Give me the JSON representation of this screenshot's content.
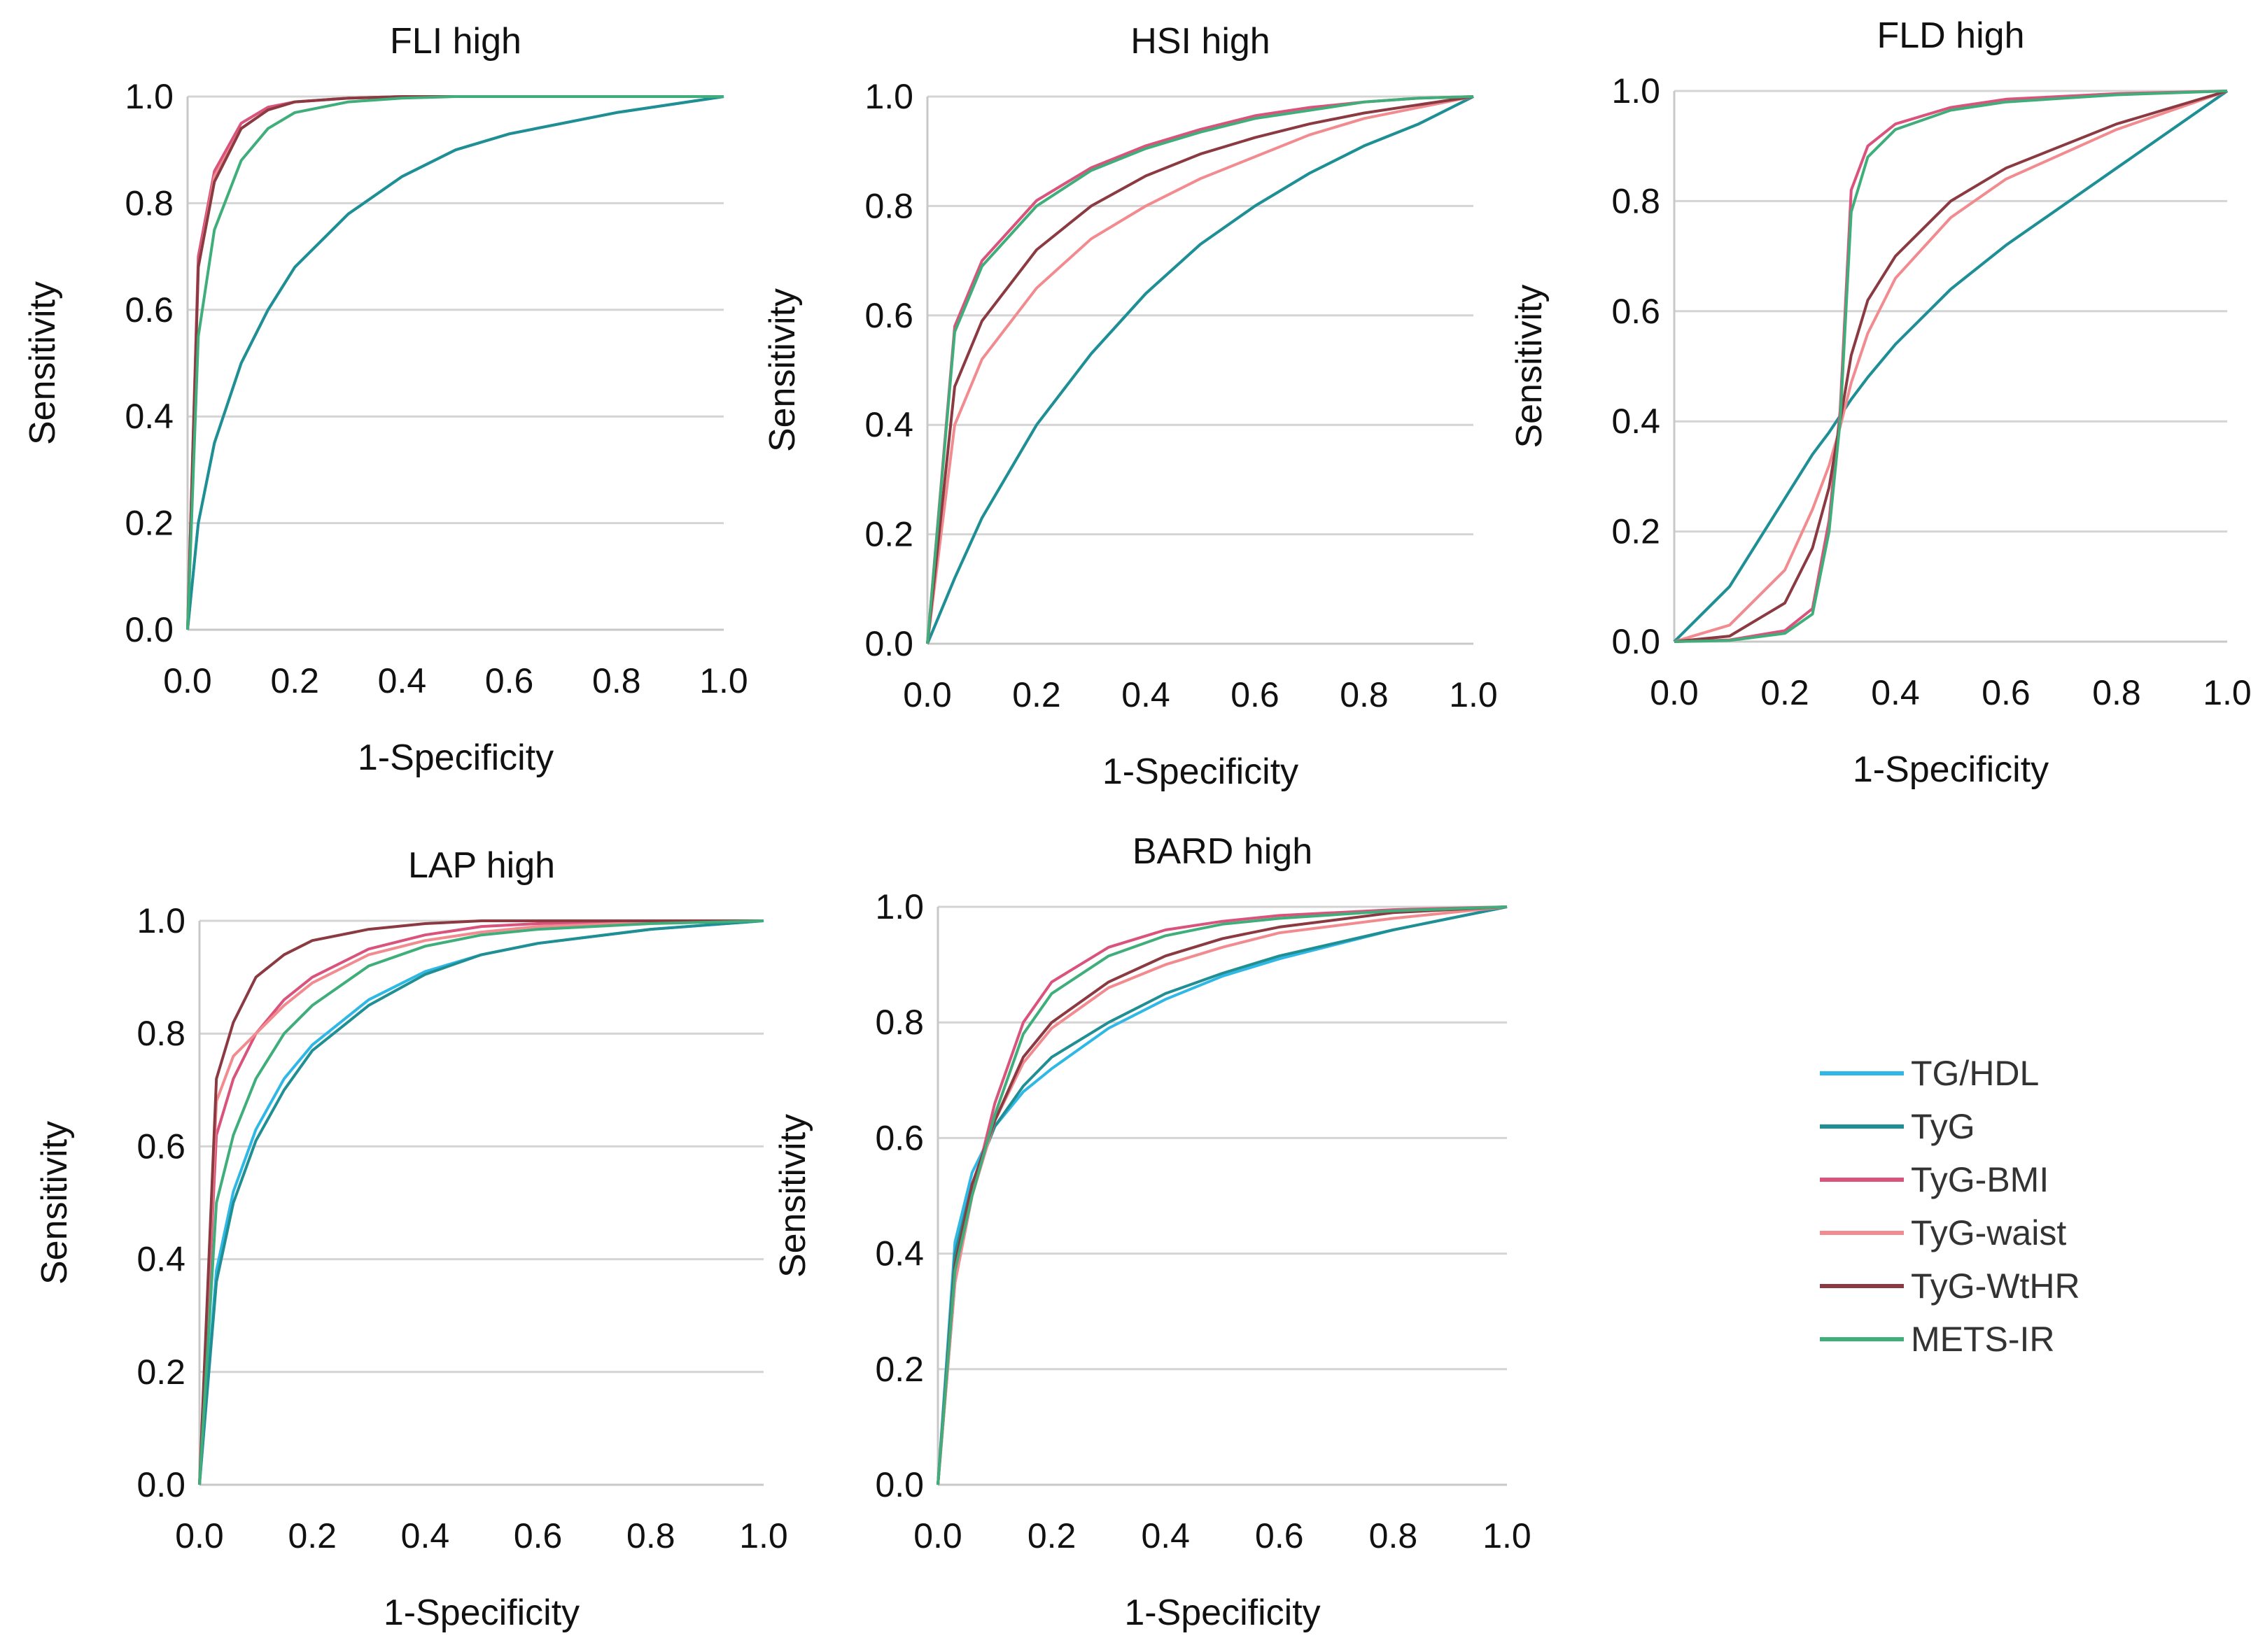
{
  "figure": {
    "xlabel": "1-Specificity",
    "ylabel": "Sensitivity",
    "ticks": [
      "0.0",
      "0.2",
      "0.4",
      "0.6",
      "0.8",
      "1.0"
    ]
  },
  "legend": {
    "items": [
      {
        "name": "TG/HDL",
        "color": "#2fb8e6"
      },
      {
        "name": "TyG",
        "color": "#1f8f94"
      },
      {
        "name": "TyG-BMI",
        "color": "#d9537c"
      },
      {
        "name": "TyG-waist",
        "color": "#f28b8f"
      },
      {
        "name": "TyG-WtHR",
        "color": "#8c3a42"
      },
      {
        "name": "METS-IR",
        "color": "#3fae7a"
      }
    ]
  },
  "chart_data": [
    {
      "type": "line",
      "title": "FLI high",
      "xlabel": "1-Specificity",
      "ylabel": "Sensitivity",
      "xlim": [
        0,
        1
      ],
      "ylim": [
        0,
        1
      ],
      "x": [
        0,
        0.02,
        0.05,
        0.1,
        0.15,
        0.2,
        0.3,
        0.4,
        0.5,
        0.6,
        0.8,
        1.0
      ],
      "series": [
        {
          "name": "TG/HDL",
          "values": [
            0,
            0.2,
            0.35,
            0.5,
            0.6,
            0.68,
            0.78,
            0.85,
            0.9,
            0.93,
            0.97,
            1.0
          ]
        },
        {
          "name": "TyG",
          "values": [
            0,
            0.2,
            0.35,
            0.5,
            0.6,
            0.68,
            0.78,
            0.85,
            0.9,
            0.93,
            0.97,
            1.0
          ]
        },
        {
          "name": "TyG-BMI",
          "values": [
            0,
            0.7,
            0.86,
            0.95,
            0.98,
            0.99,
            0.997,
            1.0,
            1.0,
            1.0,
            1.0,
            1.0
          ]
        },
        {
          "name": "TyG-waist",
          "values": [
            0,
            0.68,
            0.85,
            0.94,
            0.975,
            0.99,
            0.997,
            1.0,
            1.0,
            1.0,
            1.0,
            1.0
          ]
        },
        {
          "name": "TyG-WtHR",
          "values": [
            0,
            0.68,
            0.84,
            0.94,
            0.975,
            0.99,
            0.997,
            1.0,
            1.0,
            1.0,
            1.0,
            1.0
          ]
        },
        {
          "name": "METS-IR",
          "values": [
            0,
            0.55,
            0.75,
            0.88,
            0.94,
            0.97,
            0.99,
            0.997,
            1.0,
            1.0,
            1.0,
            1.0
          ]
        }
      ]
    },
    {
      "type": "line",
      "title": "HSI high",
      "xlabel": "1-Specificity",
      "ylabel": "Sensitivity",
      "xlim": [
        0,
        1
      ],
      "ylim": [
        0,
        1
      ],
      "x": [
        0,
        0.05,
        0.1,
        0.2,
        0.3,
        0.4,
        0.5,
        0.6,
        0.7,
        0.8,
        0.9,
        1.0
      ],
      "series": [
        {
          "name": "TG/HDL",
          "values": [
            0,
            0.12,
            0.23,
            0.4,
            0.53,
            0.64,
            0.73,
            0.8,
            0.86,
            0.91,
            0.95,
            1.0
          ]
        },
        {
          "name": "TyG",
          "values": [
            0,
            0.12,
            0.23,
            0.4,
            0.53,
            0.64,
            0.73,
            0.8,
            0.86,
            0.91,
            0.95,
            1.0
          ]
        },
        {
          "name": "TyG-BMI",
          "values": [
            0,
            0.58,
            0.7,
            0.81,
            0.87,
            0.91,
            0.94,
            0.965,
            0.98,
            0.99,
            0.997,
            1.0
          ]
        },
        {
          "name": "TyG-waist",
          "values": [
            0,
            0.4,
            0.52,
            0.65,
            0.74,
            0.8,
            0.85,
            0.89,
            0.93,
            0.96,
            0.98,
            1.0
          ]
        },
        {
          "name": "TyG-WtHR",
          "values": [
            0,
            0.47,
            0.59,
            0.72,
            0.8,
            0.855,
            0.895,
            0.925,
            0.95,
            0.97,
            0.985,
            1.0
          ]
        },
        {
          "name": "METS-IR",
          "values": [
            0,
            0.57,
            0.69,
            0.8,
            0.865,
            0.905,
            0.935,
            0.96,
            0.975,
            0.99,
            0.997,
            1.0
          ]
        }
      ]
    },
    {
      "type": "line",
      "title": "FLD high",
      "xlabel": "1-Specificity",
      "ylabel": "Sensitivity",
      "xlim": [
        0,
        1
      ],
      "ylim": [
        0,
        1
      ],
      "x": [
        0,
        0.1,
        0.2,
        0.25,
        0.28,
        0.3,
        0.32,
        0.35,
        0.4,
        0.5,
        0.6,
        0.8,
        1.0
      ],
      "series": [
        {
          "name": "TG/HDL",
          "values": [
            0,
            0.1,
            0.26,
            0.34,
            0.38,
            0.41,
            0.44,
            0.48,
            0.54,
            0.64,
            0.72,
            0.86,
            1.0
          ]
        },
        {
          "name": "TyG",
          "values": [
            0,
            0.1,
            0.26,
            0.34,
            0.38,
            0.41,
            0.44,
            0.48,
            0.54,
            0.64,
            0.72,
            0.86,
            1.0
          ]
        },
        {
          "name": "TyG-BMI",
          "values": [
            0,
            0.003,
            0.02,
            0.06,
            0.22,
            0.42,
            0.82,
            0.9,
            0.94,
            0.97,
            0.985,
            0.995,
            1.0
          ]
        },
        {
          "name": "TyG-waist",
          "values": [
            0,
            0.03,
            0.13,
            0.24,
            0.32,
            0.39,
            0.47,
            0.56,
            0.66,
            0.77,
            0.84,
            0.93,
            1.0
          ]
        },
        {
          "name": "TyG-WtHR",
          "values": [
            0,
            0.01,
            0.07,
            0.17,
            0.28,
            0.4,
            0.52,
            0.62,
            0.7,
            0.8,
            0.86,
            0.94,
            1.0
          ]
        },
        {
          "name": "METS-IR",
          "values": [
            0,
            0.002,
            0.015,
            0.05,
            0.2,
            0.4,
            0.78,
            0.88,
            0.93,
            0.965,
            0.98,
            0.993,
            1.0
          ]
        }
      ]
    },
    {
      "type": "line",
      "title": "LAP high",
      "xlabel": "1-Specificity",
      "ylabel": "Sensitivity",
      "xlim": [
        0,
        1
      ],
      "ylim": [
        0,
        1
      ],
      "x": [
        0,
        0.03,
        0.06,
        0.1,
        0.15,
        0.2,
        0.3,
        0.4,
        0.5,
        0.6,
        0.8,
        1.0
      ],
      "series": [
        {
          "name": "TG/HDL",
          "values": [
            0,
            0.38,
            0.52,
            0.63,
            0.72,
            0.78,
            0.86,
            0.91,
            0.94,
            0.96,
            0.985,
            1.0
          ]
        },
        {
          "name": "TyG",
          "values": [
            0,
            0.36,
            0.5,
            0.61,
            0.7,
            0.77,
            0.85,
            0.905,
            0.94,
            0.96,
            0.985,
            1.0
          ]
        },
        {
          "name": "TyG-BMI",
          "values": [
            0,
            0.62,
            0.72,
            0.8,
            0.86,
            0.9,
            0.95,
            0.975,
            0.99,
            0.995,
            1.0,
            1.0
          ]
        },
        {
          "name": "TyG-waist",
          "values": [
            0,
            0.68,
            0.76,
            0.8,
            0.85,
            0.89,
            0.94,
            0.965,
            0.98,
            0.99,
            0.997,
            1.0
          ]
        },
        {
          "name": "TyG-WtHR",
          "values": [
            0,
            0.72,
            0.82,
            0.9,
            0.94,
            0.965,
            0.985,
            0.995,
            1.0,
            1.0,
            1.0,
            1.0
          ]
        },
        {
          "name": "METS-IR",
          "values": [
            0,
            0.5,
            0.62,
            0.72,
            0.8,
            0.85,
            0.92,
            0.955,
            0.975,
            0.985,
            0.995,
            1.0
          ]
        }
      ]
    },
    {
      "type": "line",
      "title": "BARD high",
      "xlabel": "1-Specificity",
      "ylabel": "Sensitivity",
      "xlim": [
        0,
        1
      ],
      "ylim": [
        0,
        1
      ],
      "x": [
        0,
        0.03,
        0.06,
        0.1,
        0.15,
        0.2,
        0.3,
        0.4,
        0.5,
        0.6,
        0.8,
        1.0
      ],
      "series": [
        {
          "name": "TG/HDL",
          "values": [
            0,
            0.42,
            0.54,
            0.62,
            0.68,
            0.72,
            0.79,
            0.84,
            0.88,
            0.91,
            0.96,
            1.0
          ]
        },
        {
          "name": "TyG",
          "values": [
            0,
            0.4,
            0.52,
            0.62,
            0.69,
            0.74,
            0.8,
            0.85,
            0.885,
            0.915,
            0.96,
            1.0
          ]
        },
        {
          "name": "TyG-BMI",
          "values": [
            0,
            0.35,
            0.5,
            0.66,
            0.8,
            0.87,
            0.93,
            0.96,
            0.975,
            0.985,
            0.995,
            1.0
          ]
        },
        {
          "name": "TyG-waist",
          "values": [
            0,
            0.35,
            0.5,
            0.63,
            0.73,
            0.79,
            0.86,
            0.9,
            0.93,
            0.955,
            0.98,
            1.0
          ]
        },
        {
          "name": "TyG-WtHR",
          "values": [
            0,
            0.38,
            0.52,
            0.63,
            0.74,
            0.8,
            0.87,
            0.915,
            0.945,
            0.965,
            0.99,
            1.0
          ]
        },
        {
          "name": "METS-IR",
          "values": [
            0,
            0.37,
            0.5,
            0.64,
            0.78,
            0.85,
            0.915,
            0.95,
            0.97,
            0.98,
            0.993,
            1.0
          ]
        }
      ]
    }
  ]
}
